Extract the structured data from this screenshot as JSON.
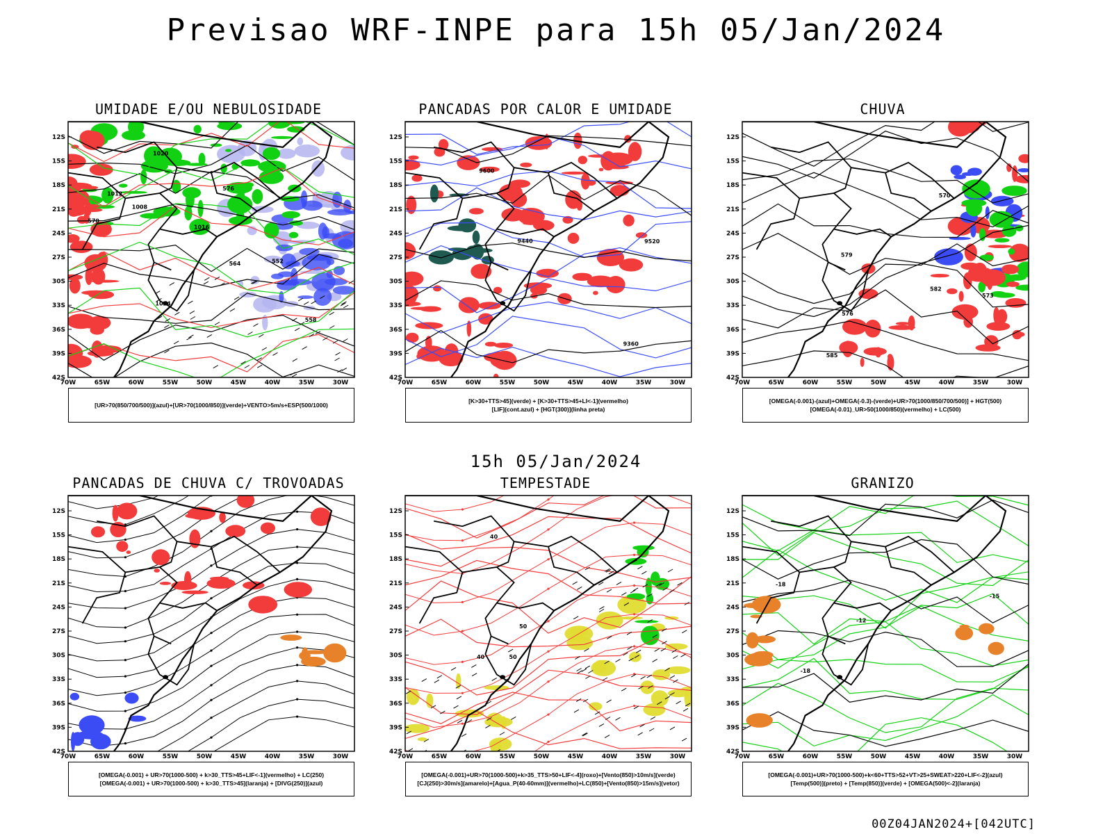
{
  "title": "Previsao WRF-INPE  para 15h 05/Jan/2024",
  "middle_title": "15h 05/Jan/2024",
  "footer": "00Z04JAN2024+[042UTC]",
  "axes": {
    "lat_labels": [
      "12S",
      "15S",
      "18S",
      "21S",
      "24S",
      "27S",
      "30S",
      "33S",
      "36S",
      "39S",
      "42S"
    ],
    "lon_labels": [
      "70W",
      "65W",
      "60W",
      "55W",
      "50W",
      "45W",
      "40W",
      "35W",
      "30W"
    ]
  },
  "panels": [
    {
      "title": "UMIDADE E/OU NEBULOSIDADE",
      "legend": [
        "[UR>70(850/700/500)](azul)+[UR>70(1000/850)](verde)+VENTO>5m/s+ESP(500/1000)"
      ],
      "contour_labels": [
        "1008",
        "1012",
        "1016",
        "1020",
        "1024",
        "576",
        "570",
        "564",
        "558",
        "552"
      ]
    },
    {
      "title": "PANCADAS POR CALOR E UMIDADE",
      "legend": [
        "[K>30+TTS>45](verde) + [K>30+TTS>45+LI<-1](vermelho)",
        "[LIF](cont.azul) + [HGT(300)](linha preta)"
      ],
      "contour_labels": [
        "9600",
        "9520",
        "9440",
        "9360"
      ]
    },
    {
      "title": "CHUVA",
      "legend": [
        "[OMEGA(-0.001)-(azul)+OMEGA(-0.3)-(verde)+UR>70(1000/850/700/500)] + HGT(500)",
        "[OMEGA(-0.01)_UR>50(1000/850)(vermelho) + LC(500)"
      ],
      "contour_labels": [
        "585",
        "582",
        "579",
        "576",
        "573",
        "570"
      ]
    },
    {
      "title": "PANCADAS DE CHUVA C/ TROVOADAS",
      "legend": [
        "[OMEGA(-0.001) + UR>70(1000-500) + k>30_TTS>45+LIF<-1](vermelho) + LC(250)",
        "[OMEGA(-0.001) + UR>70(1000-500) + k>30_TTS>45](laranja) + [DIVG(250)](azul)"
      ],
      "contour_labels": []
    },
    {
      "title": "TEMPESTADE",
      "legend": [
        "[OMEGA(-0.001)+UR>70(1000-500)+k>35_TTS>50+LIF<-4](roxo)+[Vento(850)>10m/s](verde)",
        "[CJ(250)>30m/s](amarelo)+[Agua_P(40-60mm)](vermelho)+LC(850)+[Vento(850)>15m/s](vetor)"
      ],
      "contour_labels": [
        "50",
        "40",
        "40",
        "50"
      ]
    },
    {
      "title": "GRANIZO",
      "legend": [
        "[OMEGA(-0.001)+UR>70(1000-500)+k<60+TTS>52+VT>25+SWEAT>220+LIF<-2](azul)",
        "[Temp(500)](preto) + [Temp(850)](verde) + [OMEGA(500)<-2](laranja)"
      ],
      "contour_labels": [
        "-12",
        "-18",
        "-18",
        "-15"
      ]
    }
  ],
  "colors": {
    "blue": "#3b4cf5",
    "green": "#12d112",
    "red": "#f23b3b",
    "dark_teal": "#1e5a50",
    "yellow": "#e0dc32",
    "orange": "#e8822a",
    "lavender": "#b4b4f0"
  }
}
